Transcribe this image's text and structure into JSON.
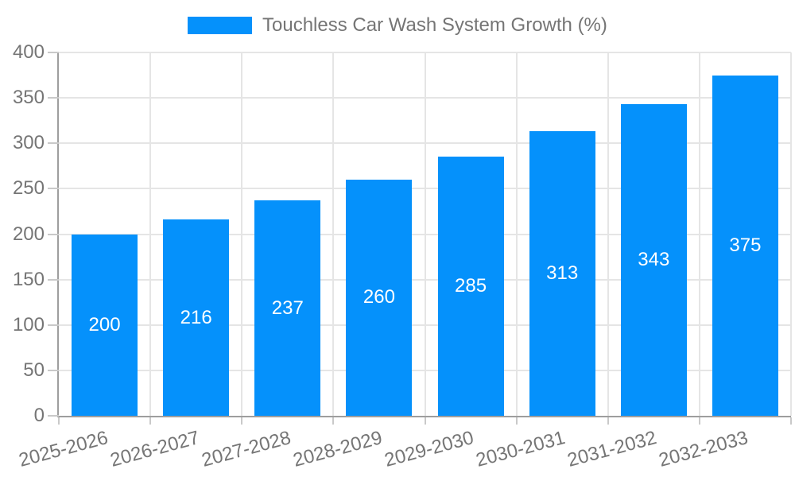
{
  "chart_data": {
    "type": "bar",
    "title": "Touchless Car Wash System Growth (%)",
    "categories": [
      "2025-2026",
      "2026-2027",
      "2027-2028",
      "2028-2029",
      "2029-2030",
      "2030-2031",
      "2031-2032",
      "2032-2033"
    ],
    "values": [
      200,
      216,
      237,
      260,
      285,
      313,
      343,
      375
    ],
    "yticks": [
      0,
      50,
      100,
      150,
      200,
      250,
      300,
      350,
      400
    ],
    "ylim": [
      0,
      400
    ],
    "xlabel": "",
    "ylabel": "",
    "grid": true,
    "legend_position": "top",
    "bar_labels_inside": true,
    "colors": {
      "bar": "#0591FB",
      "bar_value_label": "#ffffff",
      "axis_text": "#757575",
      "axis_line": "#9E9E9E",
      "gridline": "#E5E5E5",
      "tick": "#C9C9C9",
      "background": "#ffffff"
    }
  }
}
